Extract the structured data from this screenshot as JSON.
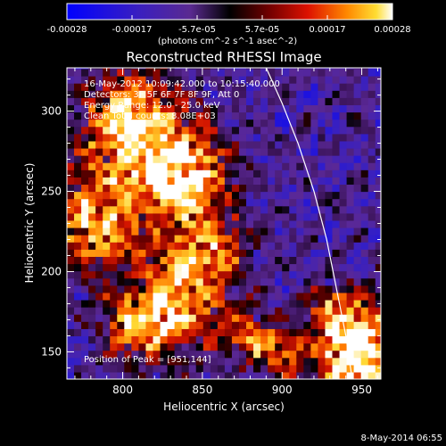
{
  "chart_data": {
    "type": "heatmap",
    "title": "Reconstructed RHESSI Image",
    "xlabel": "Heliocentric X (arcsec)",
    "ylabel": "Heliocentric Y (arcsec)",
    "xlim": [
      765,
      962
    ],
    "ylim": [
      133,
      327
    ],
    "x_ticks": [
      800,
      850,
      900,
      950
    ],
    "y_ticks": [
      150,
      200,
      250,
      300
    ],
    "colorbar": {
      "ticks": [
        "-0.00028",
        "-0.00017",
        "-5.7e-05",
        "5.7e-05",
        "0.00017",
        "0.00028"
      ],
      "units": "(photons cm^-2 s^-1 asec^-2)",
      "range": [
        -0.00028,
        0.00028
      ],
      "colors": [
        "#0000ff",
        "#2200bb",
        "#6633aa",
        "#000000",
        "#660000",
        "#cc1100",
        "#ff6600",
        "#ffcc22",
        "#ffffff"
      ]
    },
    "annotations": [
      "16-May-2012 10:09:42.000 to 10:15:40.000",
      "Detectors: 3F 5F 6F 7F 8F 9F, Att 0",
      "Energy Range: 12.0 - 25.0 keV",
      "Clean    Total counts: 8.08E+03"
    ],
    "peak_label": "Position of Peak = [951,144]",
    "peak": [
      951,
      144
    ],
    "limb_points": [
      [
        890,
        327
      ],
      [
        900,
        305
      ],
      [
        910,
        280
      ],
      [
        920,
        250
      ],
      [
        928,
        220
      ],
      [
        935,
        185
      ],
      [
        940,
        160
      ],
      [
        944,
        133
      ]
    ],
    "hot_regions": [
      {
        "x": 808,
        "y": 290,
        "sigma": 22,
        "amp": 0.9
      },
      {
        "x": 838,
        "y": 258,
        "sigma": 18,
        "amp": 1.0
      },
      {
        "x": 785,
        "y": 232,
        "sigma": 20,
        "amp": 0.75
      },
      {
        "x": 835,
        "y": 185,
        "sigma": 22,
        "amp": 0.7
      },
      {
        "x": 810,
        "y": 165,
        "sigma": 15,
        "amp": 0.55
      },
      {
        "x": 855,
        "y": 215,
        "sigma": 15,
        "amp": 0.45
      },
      {
        "x": 950,
        "y": 148,
        "sigma": 18,
        "amp": 1.1
      },
      {
        "x": 935,
        "y": 175,
        "sigma": 12,
        "amp": 0.5
      },
      {
        "x": 900,
        "y": 150,
        "sigma": 12,
        "amp": 0.5
      },
      {
        "x": 878,
        "y": 160,
        "sigma": 10,
        "amp": 0.45
      }
    ]
  },
  "footer": {
    "date": "8-May-2014 06:55"
  }
}
